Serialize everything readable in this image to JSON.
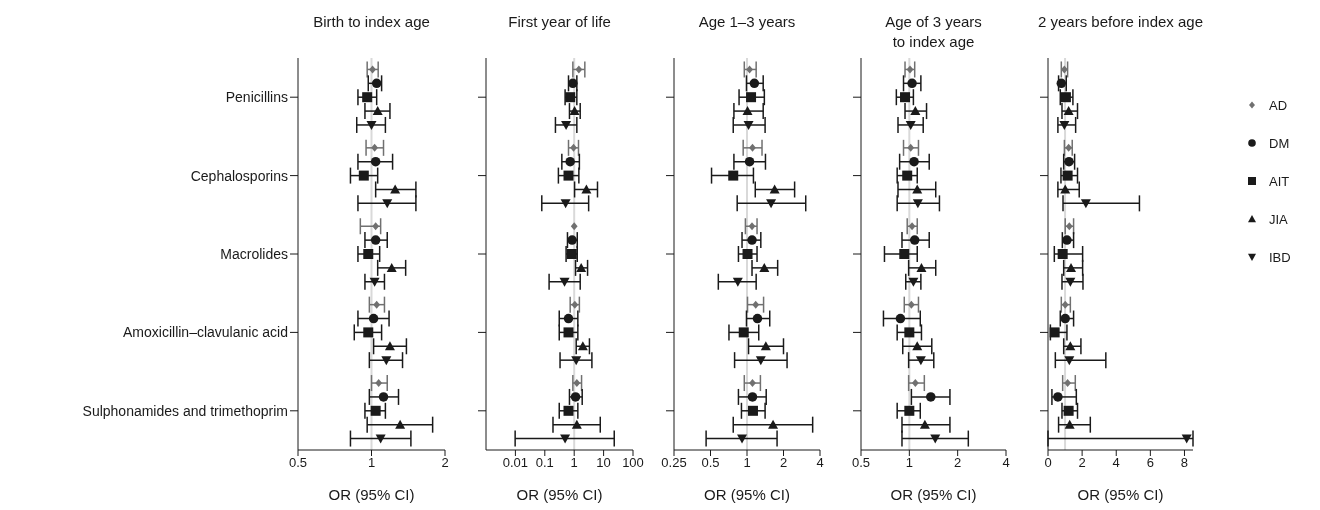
{
  "chart_data": [
    {
      "type": "scatter",
      "title": "Birth to index age",
      "xlabel": "OR (95% CI)",
      "orientation": "horizontal",
      "log": "x",
      "xlim": [
        0.5,
        2
      ],
      "xticks": [
        0.5,
        1,
        2
      ],
      "categories": [
        "Penicillins",
        "Cephalosporins",
        "Macrolides",
        "Amoxicillin–clavulanic acid",
        "Sulphonamides and trimethoprim"
      ],
      "ref_lines": [
        {
          "axis": "x",
          "value": 1,
          "color": "#d9d9d9"
        }
      ],
      "series": [
        {
          "color": "#707070",
          "marker": "diamond",
          "values": [
            1.01,
            1.03,
            1.04,
            1.05,
            1.07
          ],
          "errors": [
            [
              0.96,
              1.065
            ],
            [
              0.95,
              1.12
            ],
            [
              0.9,
              1.09
            ],
            [
              0.98,
              1.13
            ],
            [
              1.0,
              1.16
            ]
          ]
        },
        {
          "color": "#1a1a1a",
          "marker": "circle",
          "values": [
            1.05,
            1.04,
            1.04,
            1.02,
            1.12
          ],
          "errors": [
            [
              0.97,
              1.1
            ],
            [
              0.88,
              1.22
            ],
            [
              0.94,
              1.16
            ],
            [
              0.88,
              1.18
            ],
            [
              0.98,
              1.29
            ]
          ]
        },
        {
          "color": "#1a1a1a",
          "marker": "square",
          "values": [
            0.96,
            0.93,
            0.97,
            0.97,
            1.04
          ],
          "errors": [
            [
              0.88,
              1.05
            ],
            [
              0.82,
              1.06
            ],
            [
              0.88,
              1.08
            ],
            [
              0.85,
              1.1
            ],
            [
              0.94,
              1.14
            ]
          ]
        },
        {
          "color": "#1a1a1a",
          "marker": "triangle",
          "values": [
            1.06,
            1.25,
            1.21,
            1.19,
            1.31
          ],
          "errors": [
            [
              0.94,
              1.19
            ],
            [
              1.04,
              1.52
            ],
            [
              1.06,
              1.38
            ],
            [
              1.02,
              1.39
            ],
            [
              0.96,
              1.78
            ]
          ]
        },
        {
          "color": "#1a1a1a",
          "marker": "triangle-down",
          "values": [
            1.0,
            1.16,
            1.03,
            1.15,
            1.09
          ],
          "errors": [
            [
              0.87,
              1.14
            ],
            [
              0.88,
              1.52
            ],
            [
              0.94,
              1.13
            ],
            [
              0.98,
              1.34
            ],
            [
              0.82,
              1.45
            ]
          ]
        }
      ]
    },
    {
      "type": "scatter",
      "title": "First year of life",
      "xlabel": "OR (95% CI)",
      "orientation": "horizontal",
      "log": "x",
      "xlim": [
        0.001,
        100
      ],
      "xticks": [
        0.01,
        0.1,
        1,
        10,
        100
      ],
      "tick_labels": "x",
      "categories": [
        null,
        null,
        null,
        null,
        null
      ],
      "ref_lines": [
        {
          "axis": "x",
          "value": 1,
          "color": "#d9d9d9"
        }
      ],
      "series": [
        {
          "color": "#707070",
          "marker": "diamond",
          "values": [
            1.44,
            0.95,
            1.0,
            1.05,
            1.23
          ],
          "errors": [
            [
              0.9,
              2.3
            ],
            [
              0.64,
              1.4
            ],
            null,
            [
              0.73,
              1.5
            ],
            [
              0.9,
              1.78
            ]
          ]
        },
        {
          "color": "#1a1a1a",
          "marker": "circle",
          "values": [
            0.9,
            0.73,
            0.85,
            0.64,
            1.11
          ],
          "errors": [
            [
              0.64,
              1.23
            ],
            [
              0.38,
              1.5
            ],
            [
              0.59,
              1.27
            ],
            [
              0.31,
              1.33
            ],
            [
              0.69,
              1.87
            ]
          ]
        },
        {
          "color": "#1a1a1a",
          "marker": "square",
          "values": [
            0.73,
            0.64,
            0.83,
            0.64,
            0.64
          ],
          "errors": [
            [
              0.49,
              1.23
            ],
            [
              0.29,
              1.44
            ],
            [
              0.53,
              1.27
            ],
            [
              0.31,
              1.33
            ],
            [
              0.31,
              1.33
            ]
          ]
        },
        {
          "color": "#1a1a1a",
          "marker": "triangle",
          "values": [
            1.03,
            2.6,
            1.73,
            1.97,
            1.23
          ],
          "errors": [
            [
              0.69,
              1.6
            ],
            [
              1.03,
              6.2
            ],
            [
              1.11,
              2.85
            ],
            [
              1.17,
              3.3
            ],
            [
              0.19,
              7.7
            ]
          ]
        },
        {
          "color": "#1a1a1a",
          "marker": "triangle-down",
          "values": [
            0.53,
            0.51,
            0.47,
            1.17,
            0.49
          ],
          "errors": [
            [
              0.23,
              1.23
            ],
            [
              0.079,
              3.1
            ],
            [
              0.14,
              1.6
            ],
            [
              0.33,
              4.0
            ],
            [
              0.0098,
              23
            ]
          ]
        }
      ]
    },
    {
      "type": "scatter",
      "title": "Age 1–3 years",
      "xlabel": "OR (95% CI)",
      "orientation": "horizontal",
      "log": "x",
      "xlim": [
        0.25,
        4
      ],
      "xticks": [
        0.25,
        0.5,
        1,
        2,
        4
      ],
      "tick_labels": "x",
      "categories": [
        null,
        null,
        null,
        null,
        null
      ],
      "ref_lines": [
        {
          "axis": "x",
          "value": 1,
          "color": "#d9d9d9"
        }
      ],
      "series": [
        {
          "color": "#707070",
          "marker": "diamond",
          "values": [
            1.05,
            1.11,
            1.1,
            1.18,
            1.11
          ],
          "errors": [
            [
              0.95,
              1.19
            ],
            [
              0.93,
              1.33
            ],
            [
              0.97,
              1.21
            ],
            [
              1.01,
              1.37
            ],
            [
              0.95,
              1.29
            ]
          ]
        },
        {
          "color": "#1a1a1a",
          "marker": "circle",
          "values": [
            1.15,
            1.05,
            1.1,
            1.22,
            1.11
          ],
          "errors": [
            [
              0.99,
              1.36
            ],
            [
              0.78,
              1.42
            ],
            [
              0.91,
              1.3
            ],
            [
              0.99,
              1.54
            ],
            [
              0.85,
              1.44
            ]
          ]
        },
        {
          "color": "#1a1a1a",
          "marker": "square",
          "values": [
            1.08,
            0.77,
            1.01,
            0.94,
            1.12
          ],
          "errors": [
            [
              0.86,
              1.39
            ],
            [
              0.51,
              1.13
            ],
            [
              0.85,
              1.21
            ],
            [
              0.71,
              1.25
            ],
            [
              0.9,
              1.41
            ]
          ]
        },
        {
          "color": "#1a1a1a",
          "marker": "triangle",
          "values": [
            1.01,
            1.69,
            1.39,
            1.43,
            1.64
          ],
          "errors": [
            [
              0.78,
              1.36
            ],
            [
              1.17,
              2.47
            ],
            [
              1.1,
              1.79
            ],
            [
              1.03,
              2.0
            ],
            [
              0.77,
              3.48
            ]
          ]
        },
        {
          "color": "#1a1a1a",
          "marker": "triangle-down",
          "values": [
            1.03,
            1.58,
            0.84,
            1.3,
            0.91
          ],
          "errors": [
            [
              0.77,
              1.41
            ],
            [
              0.83,
              3.05
            ],
            [
              0.58,
              1.19
            ],
            [
              0.79,
              2.14
            ],
            [
              0.46,
              1.77
            ]
          ]
        }
      ]
    },
    {
      "type": "scatter",
      "title": "Age of 3 years\nto index age",
      "xlabel": "OR (95% CI)",
      "orientation": "horizontal",
      "log": "x",
      "xlim": [
        0.5,
        4
      ],
      "xticks": [
        0.5,
        1,
        2,
        4
      ],
      "tick_labels": "x",
      "categories": [
        null,
        null,
        null,
        null,
        null
      ],
      "ref_lines": [
        {
          "axis": "x",
          "value": 1,
          "color": "#d9d9d9"
        }
      ],
      "series": [
        {
          "color": "#707070",
          "marker": "diamond",
          "values": [
            1.01,
            1.02,
            1.04,
            1.03,
            1.09
          ],
          "errors": [
            [
              0.94,
              1.08
            ],
            [
              0.92,
              1.14
            ],
            [
              0.97,
              1.12
            ],
            [
              0.93,
              1.14
            ],
            [
              0.99,
              1.24
            ]
          ]
        },
        {
          "color": "#1a1a1a",
          "marker": "circle",
          "values": [
            1.04,
            1.07,
            1.08,
            0.88,
            1.36
          ],
          "errors": [
            [
              0.92,
              1.18
            ],
            [
              0.87,
              1.33
            ],
            [
              0.9,
              1.33
            ],
            [
              0.69,
              1.17
            ],
            [
              1.03,
              1.79
            ]
          ]
        },
        {
          "color": "#1a1a1a",
          "marker": "square",
          "values": [
            0.94,
            0.97,
            0.93,
            1.0,
            1.0
          ],
          "errors": [
            [
              0.83,
              1.06
            ],
            [
              0.84,
              1.12
            ],
            [
              0.7,
              1.12
            ],
            [
              0.84,
              1.19
            ],
            [
              0.84,
              1.17
            ]
          ]
        },
        {
          "color": "#1a1a1a",
          "marker": "triangle",
          "values": [
            1.09,
            1.12,
            1.19,
            1.12,
            1.25
          ],
          "errors": [
            [
              0.94,
              1.28
            ],
            [
              0.85,
              1.46
            ],
            [
              0.99,
              1.46
            ],
            [
              0.91,
              1.38
            ],
            [
              0.9,
              1.79
            ]
          ]
        },
        {
          "color": "#1a1a1a",
          "marker": "triangle-down",
          "values": [
            1.02,
            1.13,
            1.06,
            1.18,
            1.45
          ],
          "errors": [
            [
              0.85,
              1.22
            ],
            [
              0.84,
              1.54
            ],
            [
              0.95,
              1.18
            ],
            [
              0.99,
              1.42
            ],
            [
              0.9,
              2.33
            ]
          ]
        }
      ]
    },
    {
      "type": "scatter",
      "title": "2 years before index age",
      "xlabel": "OR (95% CI)",
      "orientation": "horizontal",
      "xlim": [
        0,
        8.5
      ],
      "xticks": [
        0,
        2,
        4,
        6,
        8
      ],
      "tick_labels": "x",
      "legend": "right",
      "categories": [
        null,
        null,
        null,
        null,
        null
      ],
      "ref_lines": [
        {
          "axis": "x",
          "value": 1,
          "color": "#d9d9d9"
        }
      ],
      "series": [
        {
          "name": "AD",
          "color": "#707070",
          "marker": "diamond",
          "values": [
            0.96,
            1.21,
            1.25,
            1.01,
            1.15
          ],
          "errors": [
            [
              0.78,
              1.15
            ],
            [
              0.96,
              1.42
            ],
            [
              1.01,
              1.5
            ],
            [
              0.78,
              1.31
            ],
            [
              0.86,
              1.6
            ]
          ]
        },
        {
          "name": "DM",
          "color": "#1a1a1a",
          "marker": "circle",
          "values": [
            0.78,
            1.23,
            1.11,
            1.01,
            0.58
          ],
          "errors": [
            [
              0.62,
              1.07
            ],
            [
              0.92,
              1.56
            ],
            [
              0.84,
              1.5
            ],
            [
              0.72,
              1.5
            ],
            [
              0.23,
              1.66
            ]
          ]
        },
        {
          "name": "AIT",
          "color": "#1a1a1a",
          "marker": "square",
          "values": [
            1.05,
            1.15,
            0.86,
            0.39,
            1.21
          ],
          "errors": [
            [
              0.72,
              1.46
            ],
            [
              0.76,
              1.73
            ],
            [
              0.37,
              2.03
            ],
            [
              0.14,
              1.11
            ],
            [
              0.82,
              1.73
            ]
          ]
        },
        {
          "name": "JIA",
          "color": "#1a1a1a",
          "marker": "triangle",
          "values": [
            1.21,
            1.01,
            1.35,
            1.31,
            1.27
          ],
          "errors": [
            [
              0.82,
              1.73
            ],
            [
              0.58,
              1.83
            ],
            [
              0.92,
              2.03
            ],
            [
              0.92,
              1.93
            ],
            [
              0.62,
              2.48
            ]
          ]
        },
        {
          "name": "IBD",
          "color": "#1a1a1a",
          "marker": "triangle-down",
          "values": [
            0.96,
            2.22,
            1.31,
            1.25,
            8.13
          ],
          "errors": [
            [
              0.58,
              1.62
            ],
            [
              0.88,
              5.36
            ],
            [
              0.82,
              2.05
            ],
            [
              0.43,
              3.39
            ],
            [
              0,
              8.5
            ]
          ]
        }
      ]
    }
  ]
}
